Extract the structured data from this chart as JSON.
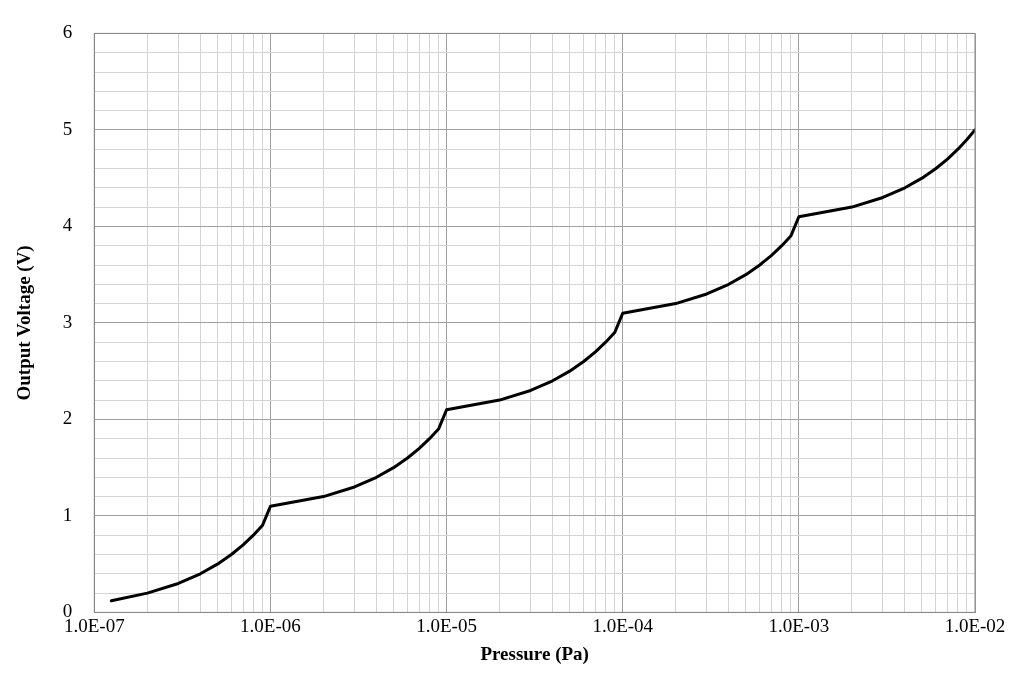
{
  "chart_data": {
    "type": "line",
    "xlabel": "Pressure (Pa)",
    "ylabel": "Output Voltage (V)",
    "log": "x",
    "grid": true,
    "legend": false,
    "marker": "none",
    "line_style": "solid",
    "xlim": [
      1e-07,
      0.01
    ],
    "ylim": [
      0,
      6
    ],
    "xticks": [
      {
        "value": 1e-07,
        "label": "1.0E-07"
      },
      {
        "value": 2e-07,
        "label": null
      },
      {
        "value": 3e-07,
        "label": null
      },
      {
        "value": 4e-07,
        "label": null
      },
      {
        "value": 5e-07,
        "label": null
      },
      {
        "value": 6e-07,
        "label": null
      },
      {
        "value": 7e-07,
        "label": null
      },
      {
        "value": 8e-07,
        "label": null
      },
      {
        "value": 9e-07,
        "label": null
      },
      {
        "value": 1e-06,
        "label": "1.0E-06"
      },
      {
        "value": 2e-06,
        "label": null
      },
      {
        "value": 3e-06,
        "label": null
      },
      {
        "value": 4e-06,
        "label": null
      },
      {
        "value": 5e-06,
        "label": null
      },
      {
        "value": 6e-06,
        "label": null
      },
      {
        "value": 7e-06,
        "label": null
      },
      {
        "value": 8e-06,
        "label": null
      },
      {
        "value": 9e-06,
        "label": null
      },
      {
        "value": 1e-05,
        "label": "1.0E-05"
      },
      {
        "value": 2e-05,
        "label": null
      },
      {
        "value": 3e-05,
        "label": null
      },
      {
        "value": 4e-05,
        "label": null
      },
      {
        "value": 5e-05,
        "label": null
      },
      {
        "value": 6e-05,
        "label": null
      },
      {
        "value": 7e-05,
        "label": null
      },
      {
        "value": 8e-05,
        "label": null
      },
      {
        "value": 9e-05,
        "label": null
      },
      {
        "value": 0.0001,
        "label": "1.0E-04"
      },
      {
        "value": 0.0002,
        "label": null
      },
      {
        "value": 0.0003,
        "label": null
      },
      {
        "value": 0.0004,
        "label": null
      },
      {
        "value": 0.0005,
        "label": null
      },
      {
        "value": 0.0006,
        "label": null
      },
      {
        "value": 0.0007,
        "label": null
      },
      {
        "value": 0.0008,
        "label": null
      },
      {
        "value": 0.0009,
        "label": null
      },
      {
        "value": 0.001,
        "label": "1.0E-03"
      },
      {
        "value": 0.002,
        "label": null
      },
      {
        "value": 0.003,
        "label": null
      },
      {
        "value": 0.004,
        "label": null
      },
      {
        "value": 0.005,
        "label": null
      },
      {
        "value": 0.006,
        "label": null
      },
      {
        "value": 0.007,
        "label": null
      },
      {
        "value": 0.008,
        "label": null
      },
      {
        "value": 0.009,
        "label": null
      },
      {
        "value": 0.01,
        "label": "1.0E-02"
      }
    ],
    "yticks": [
      0,
      {
        "value": 0.2,
        "label": null
      },
      {
        "value": 0.4,
        "label": null
      },
      {
        "value": 0.6,
        "label": null
      },
      {
        "value": 0.8,
        "label": null
      },
      1,
      {
        "value": 1.2,
        "label": null
      },
      {
        "value": 1.4,
        "label": null
      },
      {
        "value": 1.6,
        "label": null
      },
      {
        "value": 1.8,
        "label": null
      },
      2,
      {
        "value": 2.2,
        "label": null
      },
      {
        "value": 2.4,
        "label": null
      },
      {
        "value": 2.6,
        "label": null
      },
      {
        "value": 2.8,
        "label": null
      },
      3,
      {
        "value": 3.2,
        "label": null
      },
      {
        "value": 3.4,
        "label": null
      },
      {
        "value": 3.6,
        "label": null
      },
      {
        "value": 3.8,
        "label": null
      },
      4,
      {
        "value": 4.2,
        "label": null
      },
      {
        "value": 4.4,
        "label": null
      },
      {
        "value": 4.6,
        "label": null
      },
      {
        "value": 4.8,
        "label": null
      },
      5,
      {
        "value": 5.2,
        "label": null
      },
      {
        "value": 5.4,
        "label": null
      },
      {
        "value": 5.6,
        "label": null
      },
      {
        "value": 5.8,
        "label": null
      },
      6
    ],
    "series": [
      {
        "color": "#000000",
        "x": [
          1.25e-07,
          2e-07,
          3e-07,
          4e-07,
          5e-07,
          6e-07,
          7e-07,
          8e-07,
          9e-07,
          1e-06,
          2e-06,
          3e-06,
          4e-06,
          5e-06,
          6e-06,
          7e-06,
          8e-06,
          9e-06,
          1e-05,
          2e-05,
          3e-05,
          4e-05,
          5e-05,
          6e-05,
          7e-05,
          8e-05,
          9e-05,
          0.0001,
          0.0002,
          0.0003,
          0.0004,
          0.0005,
          0.0006,
          0.0007,
          0.0008,
          0.0009,
          0.001,
          0.002,
          0.003,
          0.004,
          0.005,
          0.006,
          0.007,
          0.008,
          0.009,
          0.01
        ],
        "values": [
          0.12,
          0.2,
          0.3,
          0.4,
          0.5,
          0.6,
          0.7,
          0.8,
          0.9,
          1.1,
          1.2,
          1.3,
          1.4,
          1.5,
          1.6,
          1.7,
          1.8,
          1.9,
          2.1,
          2.2,
          2.3,
          2.4,
          2.5,
          2.6,
          2.7,
          2.8,
          2.9,
          3.1,
          3.2,
          3.3,
          3.4,
          3.5,
          3.6,
          3.7,
          3.8,
          3.9,
          4.1,
          4.2,
          4.3,
          4.4,
          4.5,
          4.6,
          4.7,
          4.8,
          4.9,
          5.0
        ]
      }
    ]
  }
}
